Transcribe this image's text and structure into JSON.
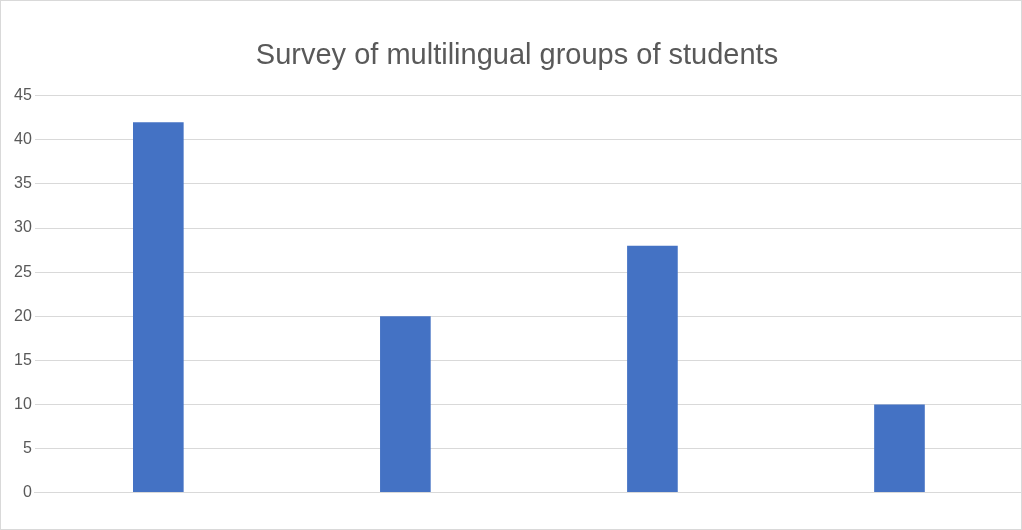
{
  "chart_data": {
    "type": "bar",
    "title": "Survey of multilingual groups of students",
    "categories": [
      null,
      null,
      null,
      null
    ],
    "values": [
      42,
      20,
      28,
      10
    ],
    "color": "#4472c4",
    "ylim": [
      0,
      45
    ],
    "yticks": [
      0,
      5,
      10,
      15,
      20,
      25,
      30,
      35,
      40,
      45
    ],
    "grid": "y"
  }
}
